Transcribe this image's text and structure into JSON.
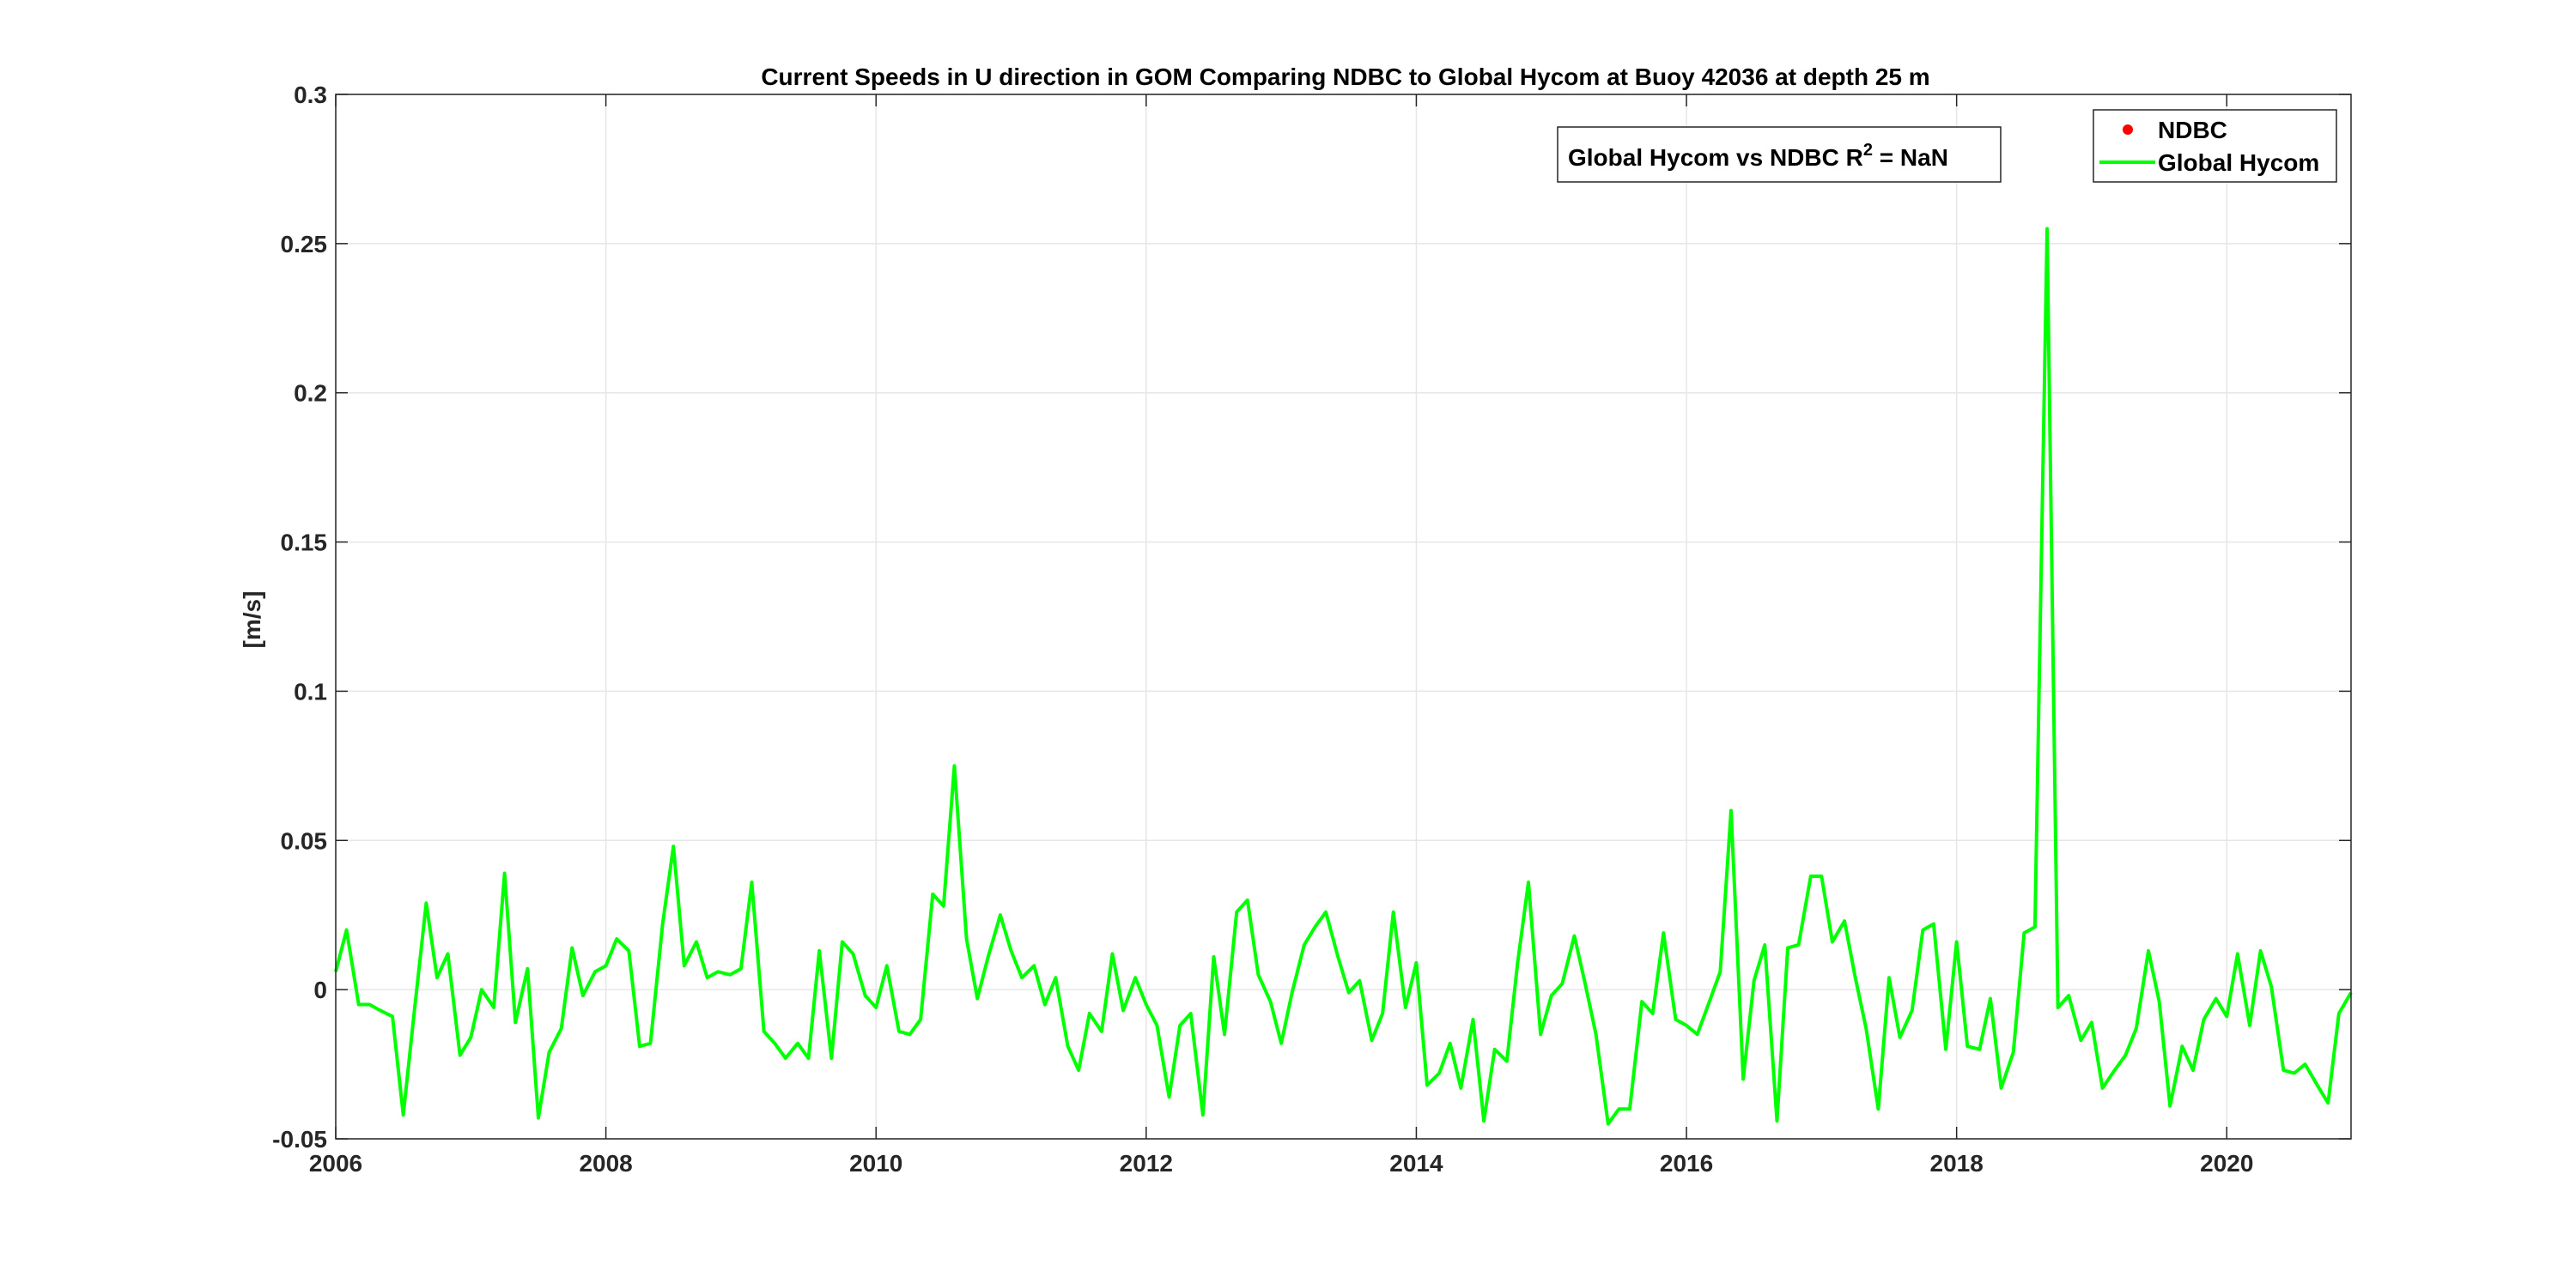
{
  "chart_data": {
    "type": "line",
    "title": "Current Speeds in U direction in GOM Comparing NDBC to Global Hycom at Buoy  42036  at depth  25 m",
    "xlabel": "",
    "ylabel": "[m/s]",
    "xlim": [
      2006.0,
      2020.92
    ],
    "ylim": [
      -0.05,
      0.3
    ],
    "xticks": [
      2006,
      2008,
      2010,
      2012,
      2014,
      2016,
      2018,
      2020
    ],
    "xtick_labels": [
      "2006",
      "2008",
      "2010",
      "2012",
      "2014",
      "2016",
      "2018",
      "2020"
    ],
    "yticks": [
      -0.05,
      0,
      0.05,
      0.1,
      0.15,
      0.2,
      0.25,
      0.3
    ],
    "ytick_labels": [
      "-0.05",
      "0",
      "0.05",
      "0.1",
      "0.15",
      "0.2",
      "0.25",
      "0.3"
    ],
    "grid": true,
    "legend_position": "top-right",
    "annotation": {
      "text_prefix": "Global Hycom vs NDBC R",
      "superscript": "2",
      "text_suffix": " = NaN"
    },
    "series": [
      {
        "name": "NDBC",
        "style": "marker",
        "color": "#ff0000",
        "points": []
      },
      {
        "name": "Global Hycom",
        "style": "line",
        "color": "#00ff00",
        "points": [
          [
            2006.0,
            0.006
          ],
          [
            2006.08,
            0.02
          ],
          [
            2006.17,
            -0.005
          ],
          [
            2006.25,
            -0.005
          ],
          [
            2006.33,
            -0.007
          ],
          [
            2006.42,
            -0.009
          ],
          [
            2006.5,
            -0.042
          ],
          [
            2006.58,
            -0.008
          ],
          [
            2006.67,
            0.029
          ],
          [
            2006.75,
            0.004
          ],
          [
            2006.83,
            0.012
          ],
          [
            2006.92,
            -0.022
          ],
          [
            2007.0,
            -0.016
          ],
          [
            2007.08,
            0.0
          ],
          [
            2007.17,
            -0.006
          ],
          [
            2007.25,
            0.039
          ],
          [
            2007.33,
            -0.011
          ],
          [
            2007.42,
            0.007
          ],
          [
            2007.5,
            -0.043
          ],
          [
            2007.58,
            -0.021
          ],
          [
            2007.67,
            -0.013
          ],
          [
            2007.75,
            0.014
          ],
          [
            2007.83,
            -0.002
          ],
          [
            2007.92,
            0.006
          ],
          [
            2008.0,
            0.008
          ],
          [
            2008.08,
            0.017
          ],
          [
            2008.17,
            0.013
          ],
          [
            2008.25,
            -0.019
          ],
          [
            2008.33,
            -0.018
          ],
          [
            2008.42,
            0.022
          ],
          [
            2008.5,
            0.048
          ],
          [
            2008.58,
            0.008
          ],
          [
            2008.67,
            0.016
          ],
          [
            2008.75,
            0.004
          ],
          [
            2008.83,
            0.006
          ],
          [
            2008.92,
            0.005
          ],
          [
            2009.0,
            0.007
          ],
          [
            2009.08,
            0.036
          ],
          [
            2009.17,
            -0.014
          ],
          [
            2009.25,
            -0.018
          ],
          [
            2009.33,
            -0.023
          ],
          [
            2009.42,
            -0.018
          ],
          [
            2009.5,
            -0.023
          ],
          [
            2009.58,
            0.013
          ],
          [
            2009.67,
            -0.023
          ],
          [
            2009.75,
            0.016
          ],
          [
            2009.83,
            0.012
          ],
          [
            2009.92,
            -0.002
          ],
          [
            2010.0,
            -0.006
          ],
          [
            2010.08,
            0.008
          ],
          [
            2010.17,
            -0.014
          ],
          [
            2010.25,
            -0.015
          ],
          [
            2010.33,
            -0.01
          ],
          [
            2010.42,
            0.032
          ],
          [
            2010.5,
            0.028
          ],
          [
            2010.58,
            0.075
          ],
          [
            2010.67,
            0.017
          ],
          [
            2010.75,
            -0.003
          ],
          [
            2010.83,
            0.011
          ],
          [
            2010.92,
            0.025
          ],
          [
            2011.0,
            0.013
          ],
          [
            2011.08,
            0.004
          ],
          [
            2011.17,
            0.008
          ],
          [
            2011.25,
            -0.005
          ],
          [
            2011.33,
            0.004
          ],
          [
            2011.42,
            -0.019
          ],
          [
            2011.5,
            -0.027
          ],
          [
            2011.58,
            -0.008
          ],
          [
            2011.67,
            -0.014
          ],
          [
            2011.75,
            0.012
          ],
          [
            2011.83,
            -0.007
          ],
          [
            2011.92,
            0.004
          ],
          [
            2012.0,
            -0.005
          ],
          [
            2012.08,
            -0.012
          ],
          [
            2012.17,
            -0.036
          ],
          [
            2012.25,
            -0.012
          ],
          [
            2012.33,
            -0.008
          ],
          [
            2012.42,
            -0.042
          ],
          [
            2012.5,
            0.011
          ],
          [
            2012.58,
            -0.015
          ],
          [
            2012.67,
            0.026
          ],
          [
            2012.75,
            0.03
          ],
          [
            2012.83,
            0.005
          ],
          [
            2012.92,
            -0.004
          ],
          [
            2013.0,
            -0.018
          ],
          [
            2013.08,
            -0.001
          ],
          [
            2013.17,
            0.015
          ],
          [
            2013.25,
            0.021
          ],
          [
            2013.33,
            0.026
          ],
          [
            2013.42,
            0.011
          ],
          [
            2013.5,
            -0.001
          ],
          [
            2013.58,
            0.003
          ],
          [
            2013.67,
            -0.017
          ],
          [
            2013.75,
            -0.008
          ],
          [
            2013.83,
            0.026
          ],
          [
            2013.92,
            -0.006
          ],
          [
            2014.0,
            0.009
          ],
          [
            2014.08,
            -0.032
          ],
          [
            2014.17,
            -0.028
          ],
          [
            2014.25,
            -0.018
          ],
          [
            2014.33,
            -0.033
          ],
          [
            2014.42,
            -0.01
          ],
          [
            2014.5,
            -0.044
          ],
          [
            2014.58,
            -0.02
          ],
          [
            2014.67,
            -0.024
          ],
          [
            2014.75,
            0.009
          ],
          [
            2014.83,
            0.036
          ],
          [
            2014.92,
            -0.015
          ],
          [
            2015.0,
            -0.002
          ],
          [
            2015.08,
            0.002
          ],
          [
            2015.17,
            0.018
          ],
          [
            2015.25,
            0.002
          ],
          [
            2015.33,
            -0.015
          ],
          [
            2015.42,
            -0.045
          ],
          [
            2015.5,
            -0.04
          ],
          [
            2015.58,
            -0.04
          ],
          [
            2015.67,
            -0.004
          ],
          [
            2015.75,
            -0.008
          ],
          [
            2015.83,
            0.019
          ],
          [
            2015.92,
            -0.01
          ],
          [
            2016.0,
            -0.012
          ],
          [
            2016.08,
            -0.015
          ],
          [
            2016.17,
            -0.004
          ],
          [
            2016.25,
            0.006
          ],
          [
            2016.33,
            0.06
          ],
          [
            2016.42,
            -0.03
          ],
          [
            2016.5,
            0.003
          ],
          [
            2016.58,
            0.015
          ],
          [
            2016.67,
            -0.044
          ],
          [
            2016.75,
            0.014
          ],
          [
            2016.83,
            0.015
          ],
          [
            2016.92,
            0.038
          ],
          [
            2017.0,
            0.038
          ],
          [
            2017.08,
            0.016
          ],
          [
            2017.17,
            0.023
          ],
          [
            2017.25,
            0.004
          ],
          [
            2017.33,
            -0.013
          ],
          [
            2017.42,
            -0.04
          ],
          [
            2017.5,
            0.004
          ],
          [
            2017.58,
            -0.016
          ],
          [
            2017.67,
            -0.007
          ],
          [
            2017.75,
            0.02
          ],
          [
            2017.83,
            0.022
          ],
          [
            2017.92,
            -0.02
          ],
          [
            2018.0,
            0.016
          ],
          [
            2018.08,
            -0.019
          ],
          [
            2018.17,
            -0.02
          ],
          [
            2018.25,
            -0.003
          ],
          [
            2018.33,
            -0.033
          ],
          [
            2018.42,
            -0.021
          ],
          [
            2018.5,
            0.019
          ],
          [
            2018.58,
            0.021
          ],
          [
            2018.67,
            0.255
          ],
          [
            2018.75,
            -0.006
          ],
          [
            2018.83,
            -0.002
          ],
          [
            2018.92,
            -0.017
          ],
          [
            2019.0,
            -0.011
          ],
          [
            2019.08,
            -0.033
          ],
          [
            2019.17,
            -0.027
          ],
          [
            2019.25,
            -0.022
          ],
          [
            2019.33,
            -0.013
          ],
          [
            2019.42,
            0.013
          ],
          [
            2019.5,
            -0.004
          ],
          [
            2019.58,
            -0.039
          ],
          [
            2019.67,
            -0.019
          ],
          [
            2019.75,
            -0.027
          ],
          [
            2019.83,
            -0.01
          ],
          [
            2019.92,
            -0.003
          ],
          [
            2020.0,
            -0.009
          ],
          [
            2020.08,
            0.012
          ],
          [
            2020.17,
            -0.012
          ],
          [
            2020.25,
            0.013
          ],
          [
            2020.33,
            0.001
          ],
          [
            2020.42,
            -0.027
          ],
          [
            2020.5,
            -0.028
          ],
          [
            2020.58,
            -0.025
          ],
          [
            2020.67,
            -0.032
          ],
          [
            2020.75,
            -0.038
          ],
          [
            2020.83,
            -0.008
          ],
          [
            2020.92,
            -0.001
          ]
        ]
      }
    ]
  }
}
